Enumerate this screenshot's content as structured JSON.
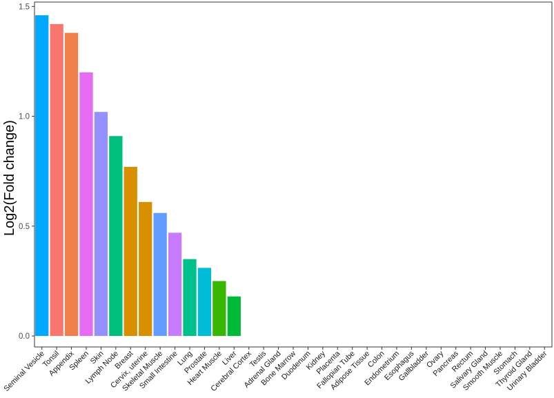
{
  "chart_data": {
    "type": "bar",
    "title": "",
    "xlabel": "",
    "ylabel": "Log2(Fold change)",
    "ylim": [
      -0.05,
      1.52
    ],
    "yticks": [
      "0.0",
      "0.5",
      "1.0",
      "1.5"
    ],
    "ytick_values": [
      0,
      0.5,
      1.0,
      1.5
    ],
    "grid": false,
    "legend": "none",
    "categories": [
      "Seminal Vesicle",
      "Tonsil",
      "Appendix",
      "Spleen",
      "Skin",
      "Lymph Node",
      "Breast",
      "Cervix, uterine",
      "Skeletal Muscle",
      "Small Intestine",
      "Lung",
      "Prostate",
      "Heart Muscle",
      "Liver",
      "Cerebral Cortex",
      "Testis",
      "Adrenal Gland",
      "Bone Marrow",
      "Duodenum",
      "Kidney",
      "Placenta",
      "Fallopian Tube",
      "Adipose Tissue",
      "Colon",
      "Endometrium",
      "Esophagus",
      "Gallbladder",
      "Ovary",
      "Pancreas",
      "Rectum",
      "Salivary Gland",
      "Smooth Muscle",
      "Stomach",
      "Thyroid Gland",
      "Urinary Bladder"
    ],
    "values": [
      1.46,
      1.42,
      1.38,
      1.2,
      1.02,
      0.91,
      0.77,
      0.61,
      0.56,
      0.47,
      0.35,
      0.31,
      0.25,
      0.18,
      0,
      0,
      0,
      0,
      0,
      0,
      0,
      0,
      0,
      0,
      0,
      0,
      0,
      0,
      0,
      0,
      0,
      0,
      0,
      0,
      0
    ],
    "colors": [
      "#00a9ff",
      "#f8766d",
      "#f07f4a",
      "#e76bf3",
      "#9590ff",
      "#00bf7d",
      "#d89000",
      "#d89000",
      "#619cff",
      "#c77cff",
      "#00c08b",
      "#00bcd8",
      "#39b600",
      "#00ba38"
    ]
  }
}
